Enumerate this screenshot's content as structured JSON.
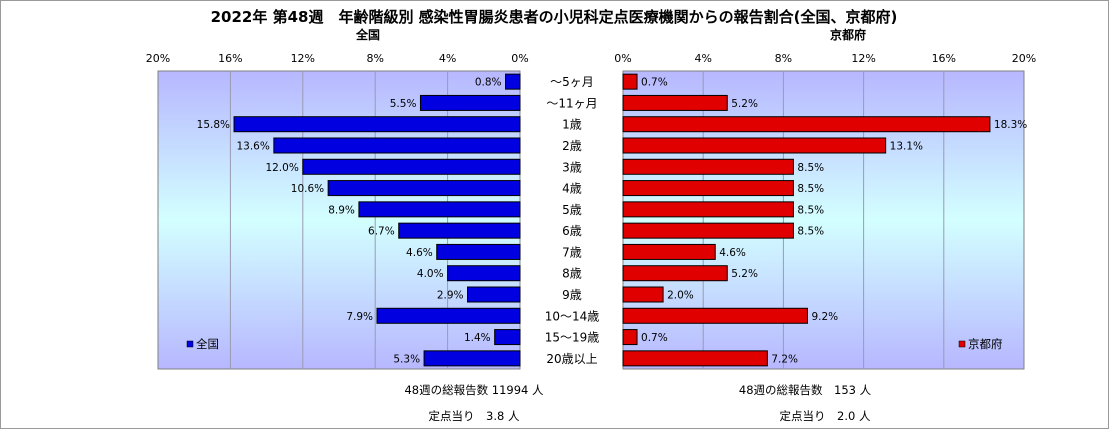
{
  "title": "2022年 第48週　年齢階級別 感染性胃腸炎患者の小児科定点医療機関からの報告割合(全国、京都府)",
  "chart_data": {
    "type": "bar",
    "orientation": "horizontal",
    "categories": [
      "～5ヶ月",
      "～11ヶ月",
      "1歳",
      "2歳",
      "3歳",
      "4歳",
      "5歳",
      "6歳",
      "7歳",
      "8歳",
      "9歳",
      "10～14歳",
      "15～19歳",
      "20歳以上"
    ],
    "series": [
      {
        "name": "全国",
        "panel_title": "全国",
        "values": [
          0.8,
          5.5,
          15.8,
          13.6,
          12.0,
          10.6,
          8.9,
          6.7,
          4.6,
          4.0,
          2.9,
          7.9,
          1.4,
          5.3
        ],
        "labels": [
          "0.8%",
          "5.5%",
          "15.8%",
          "13.6%",
          "12.0%",
          "10.6%",
          "8.9%",
          "6.7%",
          "4.6%",
          "4.0%",
          "2.9%",
          "7.9%",
          "1.4%",
          "5.3%"
        ],
        "color": "#0000e0",
        "xlim": [
          0,
          20
        ],
        "reversed": true,
        "legend_position": "bottom-left"
      },
      {
        "name": "京都府",
        "panel_title": "京都府",
        "values": [
          0.7,
          5.2,
          18.3,
          13.1,
          8.5,
          8.5,
          8.5,
          8.5,
          4.6,
          5.2,
          2.0,
          9.2,
          0.7,
          7.2
        ],
        "labels": [
          "0.7%",
          "5.2%",
          "18.3%",
          "13.1%",
          "8.5%",
          "8.5%",
          "8.5%",
          "8.5%",
          "4.6%",
          "5.2%",
          "2.0%",
          "9.2%",
          "0.7%",
          "7.2%"
        ],
        "color": "#e00000",
        "xlim": [
          0,
          20
        ],
        "reversed": false,
        "legend_position": "bottom-right"
      }
    ],
    "ticks": [
      0,
      4,
      8,
      12,
      16,
      20
    ],
    "tick_labels": [
      "0%",
      "4%",
      "8%",
      "12%",
      "16%",
      "20%"
    ],
    "grid": true
  },
  "footer": {
    "national_total": "48週の総報告数 11994 人",
    "national_per_site": "定点当り　3.8 人",
    "kyoto_total": "48週の総報告数　153 人",
    "kyoto_per_site": "定点当り　2.0 人"
  }
}
